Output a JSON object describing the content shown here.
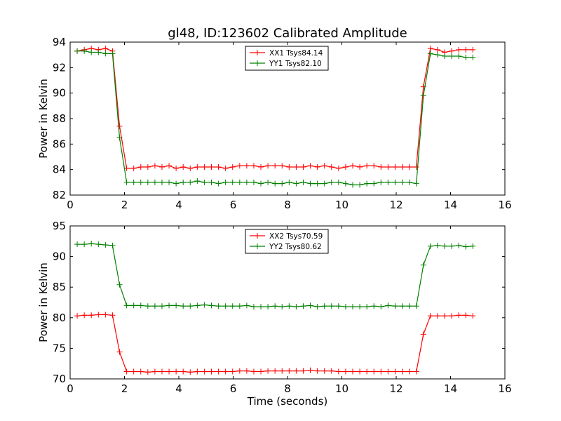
{
  "title": "gl48, ID:123602 Calibrated Amplitude",
  "chart_data": [
    {
      "type": "line",
      "xlabel": "",
      "ylabel": "Power in Kelvin",
      "xlim": [
        0,
        16
      ],
      "ylim": [
        82,
        94
      ],
      "xticks": [
        0,
        2,
        4,
        6,
        8,
        10,
        12,
        14,
        16
      ],
      "yticks": [
        82,
        84,
        86,
        88,
        90,
        92,
        94
      ],
      "grid": false,
      "legend_position": "top-center",
      "x": [
        0.26,
        0.52,
        0.78,
        1.04,
        1.3,
        1.56,
        1.82,
        2.08,
        2.34,
        2.6,
        2.86,
        3.12,
        3.38,
        3.64,
        3.9,
        4.16,
        4.42,
        4.68,
        4.94,
        5.2,
        5.46,
        5.72,
        5.98,
        6.24,
        6.5,
        6.76,
        7.02,
        7.28,
        7.54,
        7.8,
        8.06,
        8.32,
        8.58,
        8.84,
        9.1,
        9.36,
        9.62,
        9.88,
        10.14,
        10.4,
        10.66,
        10.92,
        11.18,
        11.44,
        11.7,
        11.96,
        12.22,
        12.48,
        12.74,
        13.0,
        13.26,
        13.52,
        13.78,
        14.04,
        14.3,
        14.56,
        14.82
      ],
      "series": [
        {
          "name": "XX1 Tsys84.14",
          "color": "#ff0000",
          "values": [
            93.3,
            93.4,
            93.5,
            93.4,
            93.5,
            93.3,
            87.4,
            84.1,
            84.1,
            84.2,
            84.2,
            84.3,
            84.2,
            84.3,
            84.1,
            84.2,
            84.1,
            84.2,
            84.2,
            84.2,
            84.2,
            84.1,
            84.2,
            84.3,
            84.3,
            84.3,
            84.2,
            84.3,
            84.3,
            84.3,
            84.2,
            84.2,
            84.2,
            84.3,
            84.2,
            84.3,
            84.2,
            84.1,
            84.2,
            84.3,
            84.2,
            84.3,
            84.3,
            84.2,
            84.2,
            84.2,
            84.2,
            84.2,
            84.2,
            90.5,
            93.5,
            93.4,
            93.2,
            93.3,
            93.4,
            93.4,
            93.4
          ]
        },
        {
          "name": "YY1 Tsys82.10",
          "color": "#008000",
          "values": [
            93.3,
            93.3,
            93.2,
            93.2,
            93.1,
            93.1,
            86.5,
            83.0,
            83.0,
            83.0,
            83.0,
            83.0,
            83.0,
            83.0,
            82.9,
            83.0,
            83.0,
            83.1,
            83.0,
            83.0,
            82.9,
            83.0,
            83.0,
            83.0,
            83.0,
            83.0,
            82.9,
            83.0,
            82.9,
            82.9,
            83.0,
            82.9,
            83.0,
            82.9,
            82.9,
            82.9,
            83.0,
            83.0,
            82.9,
            82.8,
            82.8,
            82.9,
            82.9,
            83.0,
            83.0,
            83.0,
            83.0,
            83.0,
            82.9,
            89.8,
            93.1,
            93.0,
            92.9,
            92.9,
            92.9,
            92.8,
            92.8
          ]
        }
      ]
    },
    {
      "type": "line",
      "xlabel": "Time (seconds)",
      "ylabel": "Power in Kelvin",
      "xlim": [
        0,
        16
      ],
      "ylim": [
        70,
        95
      ],
      "xticks": [
        0,
        2,
        4,
        6,
        8,
        10,
        12,
        14,
        16
      ],
      "yticks": [
        70,
        75,
        80,
        85,
        90,
        95
      ],
      "grid": false,
      "legend_position": "top-center",
      "x": [
        0.26,
        0.52,
        0.78,
        1.04,
        1.3,
        1.56,
        1.82,
        2.08,
        2.34,
        2.6,
        2.86,
        3.12,
        3.38,
        3.64,
        3.9,
        4.16,
        4.42,
        4.68,
        4.94,
        5.2,
        5.46,
        5.72,
        5.98,
        6.24,
        6.5,
        6.76,
        7.02,
        7.28,
        7.54,
        7.8,
        8.06,
        8.32,
        8.58,
        8.84,
        9.1,
        9.36,
        9.62,
        9.88,
        10.14,
        10.4,
        10.66,
        10.92,
        11.18,
        11.44,
        11.7,
        11.96,
        12.22,
        12.48,
        12.74,
        13.0,
        13.26,
        13.52,
        13.78,
        14.04,
        14.3,
        14.56,
        14.82
      ],
      "series": [
        {
          "name": "XX2 Tsys70.59",
          "color": "#ff0000",
          "values": [
            80.3,
            80.4,
            80.4,
            80.5,
            80.5,
            80.4,
            74.4,
            71.2,
            71.2,
            71.2,
            71.1,
            71.2,
            71.2,
            71.2,
            71.2,
            71.2,
            71.1,
            71.2,
            71.2,
            71.2,
            71.2,
            71.2,
            71.2,
            71.3,
            71.3,
            71.2,
            71.2,
            71.3,
            71.3,
            71.3,
            71.3,
            71.3,
            71.3,
            71.4,
            71.3,
            71.3,
            71.3,
            71.2,
            71.2,
            71.2,
            71.2,
            71.2,
            71.2,
            71.2,
            71.2,
            71.2,
            71.2,
            71.2,
            71.2,
            77.3,
            80.3,
            80.3,
            80.3,
            80.3,
            80.4,
            80.4,
            80.3
          ]
        },
        {
          "name": "YY2 Tsys80.62",
          "color": "#008000",
          "values": [
            92.0,
            92.0,
            92.1,
            92.0,
            91.9,
            91.8,
            85.4,
            82.0,
            82.0,
            82.0,
            81.9,
            81.9,
            81.9,
            82.0,
            82.0,
            81.9,
            81.9,
            82.0,
            82.1,
            82.0,
            81.9,
            81.9,
            81.9,
            81.9,
            82.0,
            81.8,
            81.8,
            81.8,
            81.9,
            81.8,
            81.9,
            81.8,
            81.9,
            82.0,
            81.8,
            81.9,
            81.9,
            81.9,
            81.8,
            81.8,
            81.8,
            81.8,
            81.9,
            81.8,
            82.0,
            81.9,
            81.9,
            81.9,
            81.9,
            88.6,
            91.7,
            91.8,
            91.7,
            91.7,
            91.8,
            91.6,
            91.7
          ]
        }
      ]
    }
  ]
}
